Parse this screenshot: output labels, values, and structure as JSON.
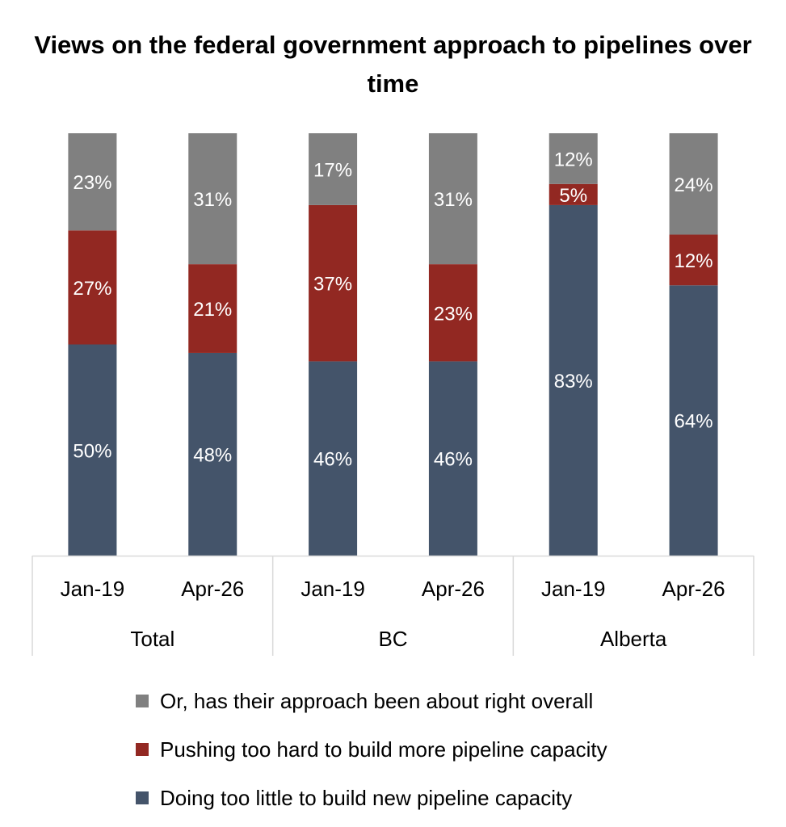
{
  "chart_data": {
    "type": "bar",
    "stacked": true,
    "title": "Views on the federal government approach to pipelines over time",
    "groups": [
      {
        "label": "Total",
        "categories": [
          "Jan-19",
          "Apr-26"
        ]
      },
      {
        "label": "BC",
        "categories": [
          "Jan-19",
          "Apr-26"
        ]
      },
      {
        "label": "Alberta",
        "categories": [
          "Jan-19",
          "Apr-26"
        ]
      }
    ],
    "categories": [
      "Jan-19",
      "Apr-26",
      "Jan-19",
      "Apr-26",
      "Jan-19",
      "Apr-26"
    ],
    "series": [
      {
        "name": "Doing too little to build new pipeline capacity",
        "color": "#44546a",
        "values": [
          50,
          48,
          46,
          46,
          83,
          64
        ],
        "labels": [
          "50%",
          "48%",
          "46%",
          "46%",
          "83%",
          "64%"
        ]
      },
      {
        "name": "Pushing too hard to build more pipeline capacity",
        "color": "#922822",
        "values": [
          27,
          21,
          37,
          23,
          5,
          12
        ],
        "labels": [
          "27%",
          "21%",
          "37%",
          "23%",
          "5%",
          "12%"
        ]
      },
      {
        "name": "Or, has their approach been about right overall",
        "color": "#808080",
        "values": [
          23,
          31,
          17,
          31,
          12,
          24
        ],
        "labels": [
          "23%",
          "31%",
          "17%",
          "31%",
          "12%",
          "24%"
        ]
      }
    ],
    "ylim": [
      0,
      100
    ],
    "grid": false,
    "legend": "bottom",
    "legend_order": [
      2,
      1,
      0
    ]
  }
}
